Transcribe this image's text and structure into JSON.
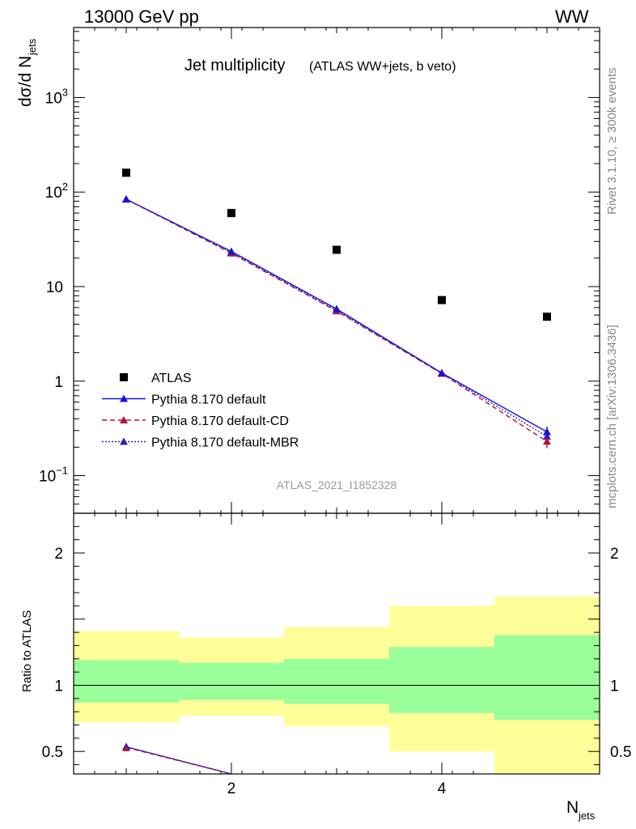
{
  "header": {
    "left": "13000 GeV pp",
    "right": "WW"
  },
  "side_labels": {
    "rivet": "Rivet 3.1.10, ≥ 300k events",
    "mcplots": "mcplots.cern.ch [arXiv:1306.3436]"
  },
  "chart_data": {
    "type": "scatter",
    "title": "Jet multiplicity",
    "subtitle": "(ATLAS WW+jets, b veto)",
    "watermark": "ATLAS_2021_I1852328",
    "xlabel": "N",
    "xlabel_sub": "jets",
    "ylabel": "dσ/d N",
    "ylabel_sub": "jets",
    "ratio_ylabel": "Ratio to ATLAS",
    "xlim": [
      0.5,
      5.5
    ],
    "ylim": [
      0.04,
      5500
    ],
    "yscale": "log",
    "ratio_ylim": [
      0.33,
      2.3
    ],
    "x_ticks": [
      2,
      4
    ],
    "y_ticks": [
      {
        "value": 0.1,
        "base": "10",
        "exp": "−1"
      },
      {
        "value": 1,
        "base": "1",
        "exp": ""
      },
      {
        "value": 10,
        "base": "10",
        "exp": ""
      },
      {
        "value": 100,
        "base": "10",
        "exp": "2"
      },
      {
        "value": 1000,
        "base": "10",
        "exp": "3"
      }
    ],
    "ratio_ticks": [
      {
        "value": 0.5,
        "label": "0.5"
      },
      {
        "value": 1,
        "label": "1"
      },
      {
        "value": 2,
        "label": "2"
      }
    ],
    "bin_edges": [
      0.5,
      1.5,
      2.5,
      3.5,
      4.5,
      5.5
    ],
    "x": [
      1,
      2,
      3,
      4,
      5
    ],
    "series": [
      {
        "name": "ATLAS",
        "kind": "data",
        "color": "#000000",
        "values": [
          160,
          60,
          24.5,
          7.2,
          4.8
        ]
      },
      {
        "name": "Pythia 8.170 default",
        "kind": "mc",
        "color": "#1414d2",
        "dash": "solid",
        "values": [
          84,
          23.5,
          5.8,
          1.22,
          0.29
        ],
        "errors": [
          0,
          0,
          0,
          0,
          0.04
        ]
      },
      {
        "name": "Pythia 8.170 default-CD",
        "kind": "mc",
        "color": "#b4143c",
        "dash": "6,4",
        "values": [
          84,
          22.5,
          5.5,
          1.2,
          0.23
        ],
        "errors": [
          0,
          0,
          0,
          0,
          0.035
        ]
      },
      {
        "name": "Pythia 8.170 default-MBR",
        "kind": "mc",
        "color": "#3a1ab4",
        "dash": "2,2",
        "values": [
          84,
          23,
          5.6,
          1.21,
          0.26
        ],
        "errors": [
          0,
          0,
          0,
          0,
          0
        ]
      }
    ],
    "ratio_band_yellow": [
      {
        "low": 0.72,
        "high": 1.41
      },
      {
        "low": 0.77,
        "high": 1.36
      },
      {
        "low": 0.69,
        "high": 1.44
      },
      {
        "low": 0.5,
        "high": 1.6
      },
      {
        "low": 0.33,
        "high": 1.67
      }
    ],
    "ratio_band_green": [
      {
        "low": 0.87,
        "high": 1.19
      },
      {
        "low": 0.89,
        "high": 1.17
      },
      {
        "low": 0.86,
        "high": 1.2
      },
      {
        "low": 0.79,
        "high": 1.29
      },
      {
        "low": 0.74,
        "high": 1.38
      }
    ],
    "ratio_lines": [
      {
        "series": "Pythia 8.170 default",
        "points": [
          [
            1,
            0.535
          ],
          [
            2,
            0.33
          ]
        ]
      },
      {
        "series": "Pythia 8.170 default-CD",
        "points": [
          [
            1,
            0.53
          ],
          [
            2,
            0.33
          ]
        ]
      }
    ],
    "band_colors": {
      "yellow": "#ffff99",
      "green": "#99ff99"
    }
  }
}
